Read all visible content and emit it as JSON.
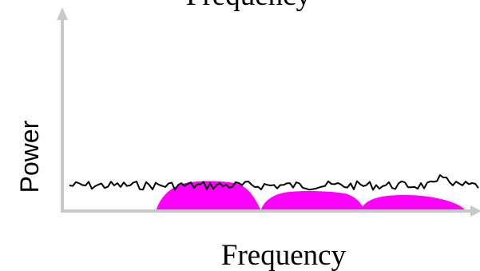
{
  "title": "Frequency",
  "xlabel": "Frequency",
  "ylabel": "Power",
  "colors": {
    "axis": "#c8c8c8",
    "noise": "#000000",
    "bands": "#ff00ff",
    "background": "#ffffff"
  }
}
